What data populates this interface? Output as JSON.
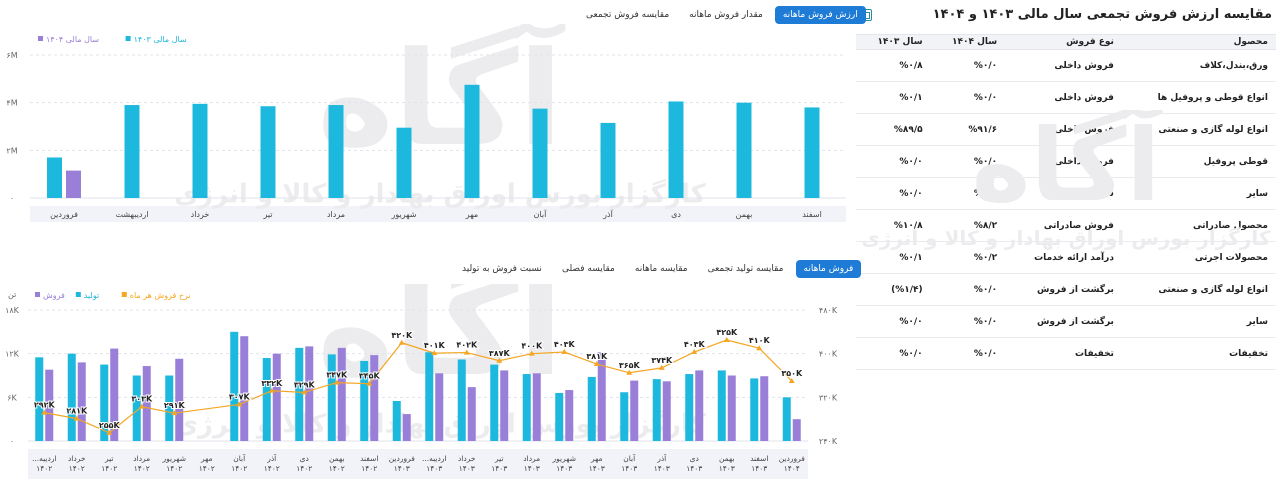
{
  "table_panel": {
    "title": "مقایسه ارزش فروش تجمعی سال مالی ۱۴۰۳ و ۱۴۰۴",
    "export_icon": "spreadsheet-icon",
    "columns": [
      "محصول",
      "نوع فروش",
      "سال ۱۴۰۴",
      "سال ۱۴۰۳"
    ],
    "rows": [
      {
        "product": "ورق،بندل،کلاف",
        "type": "فروش داخلی",
        "y1404": "%۰/۰",
        "y1403": "%۰/۸"
      },
      {
        "product": "انواع قوطی و پروفیل ها",
        "type": "فروش داخلی",
        "y1404": "%۰/۰",
        "y1403": "%۰/۱"
      },
      {
        "product": "انواع لوله گازی و صنعتی",
        "type": "فروش داخلی",
        "y1404": "%۹۱/۶",
        "y1403": "%۸۹/۵"
      },
      {
        "product": "قوطی پروفیل",
        "type": "فروش داخلی",
        "y1404": "%۰/۰",
        "y1403": "%۰/۰"
      },
      {
        "product": "سایر",
        "type": "فروش داخلی",
        "y1404": "%۰/۰",
        "y1403": "%۰/۰"
      },
      {
        "product": "محصول صادراتی",
        "type": "فروش صادراتی",
        "y1404": "%۸/۲",
        "y1403": "%۱۰/۸"
      },
      {
        "product": "محصولات اجرتی",
        "type": "درآمد ارائه خدمات",
        "y1404": "%۰/۲",
        "y1403": "%۰/۱"
      },
      {
        "product": "انواع لوله گازی و صنعتی",
        "type": "برگشت از فروش",
        "y1404": "%۰/۰",
        "y1403": "(%۱/۴)"
      },
      {
        "product": "سایر",
        "type": "برگشت از فروش",
        "y1404": "%۰/۰",
        "y1403": "%۰/۰"
      },
      {
        "product": "تخفیفات",
        "type": "تخفیفات",
        "y1404": "%۰/۰",
        "y1403": "%۰/۰"
      }
    ]
  },
  "top_tabs": [
    {
      "label": "ارزش فروش ماهانه",
      "active": true
    },
    {
      "label": "مقدار فروش ماهانه",
      "active": false
    },
    {
      "label": "مقایسه فروش تجمعی",
      "active": false
    }
  ],
  "bottom_tabs": [
    {
      "label": "فروش ماهانه",
      "active": true
    },
    {
      "label": "مقایسه تولید تجمعی",
      "active": false
    },
    {
      "label": "مقایسه ماهانه",
      "active": false
    },
    {
      "label": "مقایسه فصلی",
      "active": false
    },
    {
      "label": "نسبت فروش به تولید",
      "active": false
    }
  ],
  "colors": {
    "cyan": "#1cb8dd",
    "purple": "#9a7fd8",
    "orange": "#f5a623",
    "accent": "#1e7bd6"
  },
  "watermark": {
    "brand": "آگاه",
    "tagline": "کارگزار بورس اوراق بهادار و کالا و انرژی"
  },
  "chart_data": [
    {
      "type": "bar",
      "title": "",
      "legend": [
        {
          "name": "سال مالی ۱۴۰۴",
          "color": "#9a7fd8"
        },
        {
          "name": "سال مالی ۱۴۰۳",
          "color": "#1cb8dd"
        }
      ],
      "legend_position": "top-left",
      "categories": [
        "فروردین",
        "اردیبهشت",
        "خرداد",
        "تیر",
        "مرداد",
        "شهریور",
        "مهر",
        "آبان",
        "آذر",
        "دی",
        "بهمن",
        "اسفند"
      ],
      "series": [
        {
          "name": "سال مالی ۱۴۰۳",
          "color": "#1cb8dd",
          "values": [
            1.7,
            3.9,
            3.95,
            3.85,
            3.9,
            2.95,
            4.75,
            3.75,
            3.15,
            4.05,
            4.0,
            3.8
          ]
        },
        {
          "name": "سال مالی ۱۴۰۴",
          "color": "#9a7fd8",
          "values": [
            1.15,
            null,
            null,
            null,
            null,
            null,
            null,
            null,
            null,
            null,
            null,
            null
          ]
        }
      ],
      "y_ticks": [
        "۰",
        "۲M",
        "۴M",
        "۶M"
      ],
      "ylim": [
        0,
        6
      ],
      "grid": true
    },
    {
      "type": "bar",
      "title": "",
      "legend": [
        {
          "name": "فروش",
          "color": "#9a7fd8"
        },
        {
          "name": "تولید",
          "color": "#1cb8dd"
        },
        {
          "name": "نرخ فروش هر ماه",
          "color": "#f5a623"
        }
      ],
      "legend_position": "top-left",
      "y_left_label": "تن",
      "y_left_ticks": [
        "۰",
        "۶K",
        "۱۲K",
        "۱۸K"
      ],
      "y_right_ticks": [
        "۲۴۰K",
        "۳۲۰K",
        "۴۰۰K",
        "۴۸۰K"
      ],
      "ylim_left": [
        0,
        18
      ],
      "ylim_right": [
        240,
        480
      ],
      "categories": [
        "اردیبه... ۱۴۰۲",
        "خرداد ۱۴۰۲",
        "تیر ۱۴۰۲",
        "مرداد ۱۴۰۲",
        "شهریور ۱۴۰۲",
        "مهر ۱۴۰۲",
        "آبان ۱۴۰۲",
        "آذر ۱۴۰۲",
        "دی ۱۴۰۲",
        "بهمن ۱۴۰۲",
        "اسفند ۱۴۰۲",
        "فروردین ۱۴۰۳",
        "اردیبه... ۱۴۰۳",
        "خرداد ۱۴۰۳",
        "تیر ۱۴۰۳",
        "مرداد ۱۴۰۳",
        "شهریور ۱۴۰۳",
        "مهر ۱۴۰۳",
        "آبان ۱۴۰۳",
        "آذر ۱۴۰۳",
        "دی ۱۴۰۳",
        "بهمن ۱۴۰۳",
        "اسفند ۱۴۰۳",
        "فروردین ۱۴۰۴"
      ],
      "series": [
        {
          "name": "تولید",
          "color": "#1cb8dd",
          "values": [
            11.5,
            12.0,
            10.5,
            9.0,
            9.0,
            null,
            15.0,
            11.4,
            12.8,
            11.9,
            11.0,
            5.5,
            12.2,
            11.2,
            10.5,
            9.2,
            6.6,
            8.8,
            6.7,
            8.5,
            9.2,
            9.7,
            8.6,
            6.0
          ]
        },
        {
          "name": "فروش",
          "color": "#9a7fd8",
          "values": [
            9.8,
            10.8,
            12.7,
            10.3,
            11.3,
            null,
            14.4,
            12.0,
            13.0,
            12.8,
            11.8,
            3.7,
            9.3,
            7.4,
            9.7,
            9.3,
            7.0,
            12.2,
            8.3,
            8.2,
            9.7,
            9.0,
            8.9,
            3.0
          ]
        },
        {
          "name": "نرخ فروش هر ماه",
          "color": "#f5a623",
          "values": [
            292,
            281,
            255,
            303,
            291,
            null,
            307,
            332,
            329,
            347,
            345,
            420,
            401,
            402,
            387,
            400,
            403,
            381,
            365,
            374,
            403,
            425,
            410,
            350
          ]
        }
      ],
      "data_labels": [
        "۲۹۲K",
        "۲۸۱K",
        "۲۵۵K",
        "۳۰۳K",
        "۲۹۱K",
        "",
        "۳۰۷K",
        "۳۳۲K",
        "۳۲۹K",
        "۳۴۷K",
        "۳۴۵K",
        "۴۲۰K",
        "۴۰۱K",
        "۴۰۲K",
        "۳۸۷K",
        "۴۰۰K",
        "۴۰۳K",
        "۳۸۱K",
        "۳۶۵K",
        "۳۷۴K",
        "۴۰۳K",
        "۴۲۵K",
        "۴۱۰K",
        "۳۵۰K"
      ],
      "grid": true
    }
  ]
}
